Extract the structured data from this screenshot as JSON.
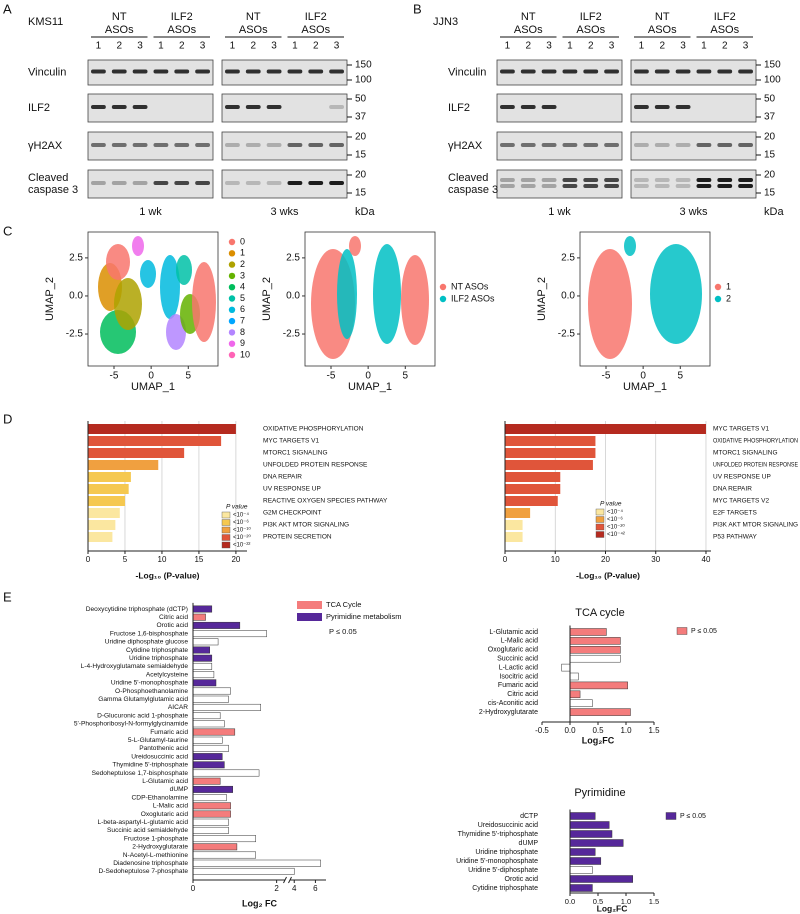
{
  "panel_letters": [
    "A",
    "B",
    "C",
    "D",
    "E"
  ],
  "blots": {
    "panels": [
      {
        "cell_line": "KMS11"
      },
      {
        "cell_line": "JJN3"
      }
    ],
    "groups": [
      [
        "NT",
        "ASOs"
      ],
      [
        "ILF2",
        "ASOs"
      ]
    ],
    "lanes": [
      "1",
      "2",
      "3"
    ],
    "rows": [
      {
        "label": [
          "Vinculin"
        ],
        "markers": [
          "150",
          "100"
        ]
      },
      {
        "label": [
          "ILF2"
        ],
        "markers": [
          "50",
          "37"
        ]
      },
      {
        "label": [
          "γH2AX"
        ],
        "markers": [
          "20",
          "15"
        ]
      },
      {
        "label": [
          "Cleaved",
          "caspase 3"
        ],
        "markers": [
          "20",
          "15"
        ]
      }
    ],
    "times": [
      "1 wk",
      "3 wks"
    ],
    "unit": "kDa"
  },
  "umap": {
    "x_label": "UMAP_1",
    "y_label": "UMAP_2",
    "xlim": [
      -8.5,
      9
    ],
    "ylim": [
      -4.6,
      4.2
    ],
    "xticks": [
      -5,
      0,
      5
    ],
    "yticks": [
      -2.5,
      {
        "value": 0,
        "label": "0.0"
      },
      2.5
    ],
    "legends": [
      [
        {
          "name": "0",
          "color": "#F8766D"
        },
        {
          "name": "1",
          "color": "#DB8E00"
        },
        {
          "name": "2",
          "color": "#AEA200"
        },
        {
          "name": "3",
          "color": "#64B200"
        },
        {
          "name": "4",
          "color": "#00BD5C"
        },
        {
          "name": "5",
          "color": "#00C1A7"
        },
        {
          "name": "6",
          "color": "#00BADE"
        },
        {
          "name": "7",
          "color": "#00A6FF"
        },
        {
          "name": "8",
          "color": "#B385FF"
        },
        {
          "name": "9",
          "color": "#EF67EB"
        },
        {
          "name": "10",
          "color": "#FF63B6"
        }
      ],
      [
        {
          "name": "NT ASOs",
          "color": "#F8766D"
        },
        {
          "name": "ILF2 ASOs",
          "color": "#00BFC4"
        }
      ],
      [
        {
          "name": "1",
          "color": "#F8766D"
        },
        {
          "name": "2",
          "color": "#00BFC4"
        }
      ]
    ]
  },
  "chart_data": [
    {
      "type": "bar",
      "orientation": "horizontal",
      "categories": [
        "OXIDATIVE PHOSPHORYLATION",
        "MYC TARGETS V1",
        "MTORC1 SIGNALING",
        "UNFOLDED PROTEIN RESPONSE",
        "DNA REPAIR",
        "UV RESPONSE UP",
        "REACTIVE OXYGEN SPECIES PATHWAY",
        "G2M CHECKPOINT",
        "PI3K AKT MTOR SIGNALING",
        "PROTEIN SECRETION"
      ],
      "values": [
        20,
        18,
        13,
        9.5,
        5.8,
        5.5,
        5,
        4.3,
        3.7,
        3.3
      ],
      "colors": [
        "#b52a1f",
        "#e0553a",
        "#e0553a",
        "#f0a040",
        "#f5c850",
        "#f5c850",
        "#f5c850",
        "#fbe7a0",
        "#fbe7a0",
        "#fbe7a0"
      ],
      "xlim": [
        0,
        21.5
      ],
      "xticks": [
        0,
        5,
        10,
        15,
        20
      ],
      "grid": true,
      "x_label": "-Log₁₀ (P-value)",
      "legend_title": "P value",
      "legend": [
        {
          "name": "<10⁻⁴",
          "color": "#fbe7a0"
        },
        {
          "name": "<10⁻⁶",
          "color": "#f5c850"
        },
        {
          "name": "<10⁻¹⁰",
          "color": "#f0a040"
        },
        {
          "name": "<10⁻²⁰",
          "color": "#e0553a"
        },
        {
          "name": "<10⁻²²",
          "color": "#b52a1f"
        }
      ]
    },
    {
      "type": "bar",
      "orientation": "horizontal",
      "categories": [
        "MYC TARGETS V1",
        "OXIDATIVE PHOSPHORYLATION",
        "MTORC1 SIGNALING",
        "UNFOLDED PROTEIN RESPONSE",
        "UV RESPONSE UP",
        "DNA REPAIR",
        "MYC TARGETS V2",
        "E2F TARGETS",
        "PI3K AKT MTOR SIGNALING",
        "P53 PATHWAY"
      ],
      "values": [
        40,
        18,
        18,
        17.5,
        11,
        11,
        10.5,
        5,
        3.5,
        3.5
      ],
      "colors": [
        "#b52a1f",
        "#e0553a",
        "#e0553a",
        "#e0553a",
        "#e0553a",
        "#e0553a",
        "#e0553a",
        "#f0a040",
        "#fbe7a0",
        "#fbe7a0"
      ],
      "xlim": [
        0,
        41
      ],
      "xticks": [
        0,
        10,
        20,
        30,
        40
      ],
      "grid": true,
      "x_label": "-Log₁₀ (P-value)",
      "legend_title": "P value",
      "legend": [
        {
          "name": "<10⁻⁴",
          "color": "#fbe7a0"
        },
        {
          "name": "<10⁻⁶",
          "color": "#f0a040"
        },
        {
          "name": "<10⁻²⁰",
          "color": "#e0553a"
        },
        {
          "name": "<10⁻⁴²",
          "color": "#b52a1f"
        }
      ]
    },
    {
      "type": "bar",
      "orientation": "horizontal",
      "categories": [
        "Deoxycytidine triphosphate (dCTP)",
        "Citric acid",
        "Orotic acid",
        "Fructose 1,6-bisphosphate",
        "Uridine diphosphate glucose",
        "Cytidine triphosphate",
        "Uridine triphosphate",
        "L-4-Hydroxyglutamate semialdehyde",
        "Acetylcysteine",
        "Uridine 5'-monophosphate",
        "O-Phosphoethanolamine",
        "Gamma Glutamylglutamic acid",
        "AICAR",
        "D-Glucuronic acid 1-phosphate",
        "5'-Phosphoribosyl-N-formylglycinamide",
        "Fumaric acid",
        "5-L-Glutamyl-taurine",
        "Pantothenic acid",
        "Ureidosuccinic acid",
        "Thymidine 5'-triphosphate",
        "Sedoheptulose 1,7-bisphosphate",
        "L-Glutamic acid",
        "dUMP",
        "CDP-Ethanolamine",
        "L-Malic acid",
        "Oxoglutaric acid",
        "L-beta-aspartyl-L-glutamic acid",
        "Succinic acid semialdehyde",
        "Fructose 1-phosphate",
        "2-Hydroxyglutarate",
        "N-Acetyl-L-methionine",
        "Diadenosine triphosphate",
        "D-Sedoheptulose 7-phosphate"
      ],
      "values": [
        0.45,
        0.3,
        1.12,
        1.76,
        0.6,
        0.4,
        0.45,
        0.45,
        0.5,
        0.55,
        0.9,
        0.85,
        1.62,
        0.65,
        0.75,
        1.0,
        0.7,
        0.85,
        0.7,
        0.75,
        1.58,
        0.65,
        0.95,
        0.8,
        0.9,
        0.9,
        0.85,
        0.85,
        1.5,
        1.05,
        1.5,
        6.5,
        4.0
      ],
      "colors": [
        "#56289a",
        "#f47c7c",
        "#56289a",
        "#ffffff",
        "#ffffff",
        "#56289a",
        "#56289a",
        "#ffffff",
        "#ffffff",
        "#56289a",
        "#ffffff",
        "#ffffff",
        "#ffffff",
        "#ffffff",
        "#ffffff",
        "#f47c7c",
        "#ffffff",
        "#ffffff",
        "#56289a",
        "#56289a",
        "#ffffff",
        "#f47c7c",
        "#56289a",
        "#ffffff",
        "#f47c7c",
        "#f47c7c",
        "#ffffff",
        "#ffffff",
        "#ffffff",
        "#f47c7c",
        "#ffffff",
        "#ffffff",
        "#ffffff"
      ],
      "xlim": [
        0,
        7
      ],
      "axis_break": [
        2.2,
        3.6
      ],
      "xticks": [
        0,
        2,
        4,
        6
      ],
      "x_label": "Log₂ FC",
      "legend": [
        {
          "name": "TCA Cycle",
          "color": "#f47c7c"
        },
        {
          "name": "Pyrimidine metabolism",
          "color": "#56289a"
        }
      ],
      "note": "P ≤ 0.05"
    },
    {
      "type": "bar",
      "orientation": "horizontal",
      "title": "TCA cycle",
      "categories": [
        "L-Glutamic acid",
        "L-Malic acid",
        "Oxoglutaric acid",
        "Succinic acid",
        "L-Lactic acid",
        "Isocitric acid",
        "Fumaric acid",
        "Citric acid",
        "cis-Aconitic acid",
        "2-Hydroxyglutarate"
      ],
      "values": [
        0.65,
        0.9,
        0.9,
        0.9,
        -0.15,
        0.15,
        1.03,
        0.18,
        0.4,
        1.08
      ],
      "colors": [
        "#f47c7c",
        "#f47c7c",
        "#f47c7c",
        "#ffffff",
        "#ffffff",
        "#ffffff",
        "#f47c7c",
        "#f47c7c",
        "#ffffff",
        "#f47c7c"
      ],
      "xlim": [
        -0.5,
        1.5
      ],
      "xticks": [
        -0.5,
        {
          "value": 0,
          "label": "0.0"
        },
        0.5,
        {
          "value": 1,
          "label": "1.0"
        },
        1.5
      ],
      "x_label": "Log₂FC",
      "legend": [
        {
          "name": "P ≤ 0.05",
          "color": "#f47c7c"
        }
      ]
    },
    {
      "type": "bar",
      "orientation": "horizontal",
      "title": "Pyrimidine",
      "categories": [
        "dCTP",
        "Ureidosuccinic acid",
        "Thymidine 5'-triphosphate",
        "dUMP",
        "Uridine triphosphate",
        "Uridine 5'-monophosphate",
        "Uridine 5'-diphosphate",
        "Orotic acid",
        "Cytidine triphosphate"
      ],
      "values": [
        0.45,
        0.7,
        0.75,
        0.95,
        0.45,
        0.55,
        0.4,
        1.12,
        0.4
      ],
      "colors": [
        "#56289a",
        "#56289a",
        "#56289a",
        "#56289a",
        "#56289a",
        "#56289a",
        "#ffffff",
        "#56289a",
        "#56289a"
      ],
      "xlim": [
        0,
        1.5
      ],
      "xticks": [
        {
          "value": 0,
          "label": "0.0"
        },
        0.5,
        {
          "value": 1,
          "label": "1.0"
        },
        1.5
      ],
      "x_label": "Log₂FC",
      "legend": [
        {
          "name": "P ≤ 0.05",
          "color": "#56289a"
        }
      ]
    }
  ]
}
